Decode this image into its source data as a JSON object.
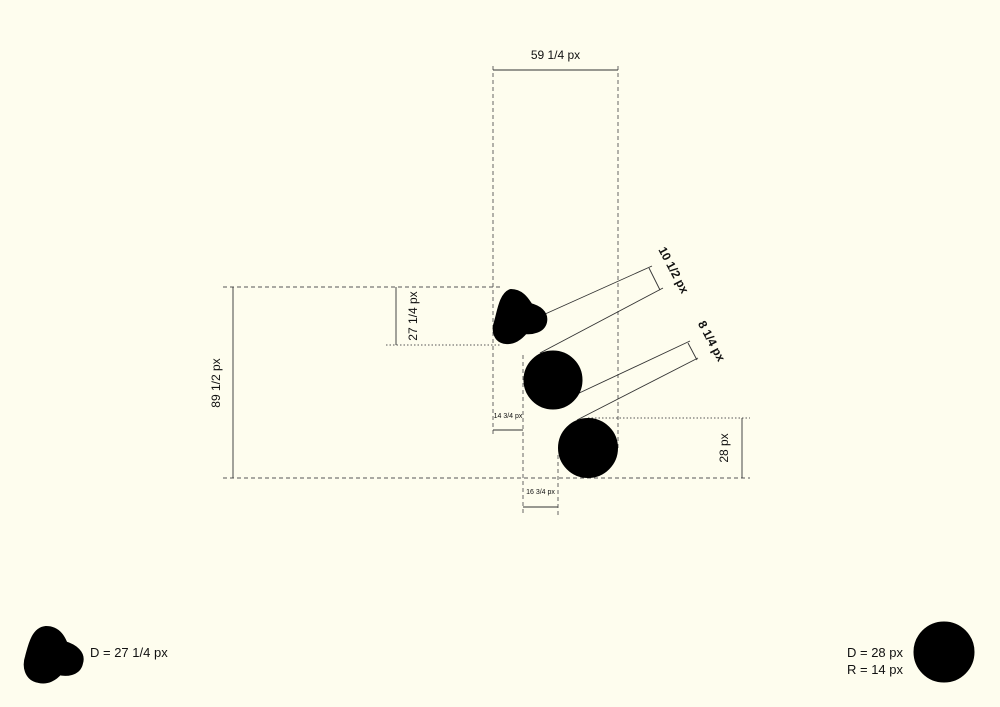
{
  "dimensions": {
    "top_width": "59 1/4 px",
    "total_height": "89 1/2 px",
    "blob_height": "27 1/4 px",
    "gap_one": "10 1/2 px",
    "gap_two": "8 1/4 px",
    "offset_one": "14 3/4 px",
    "offset_two": "16 3/4 px",
    "circle_height": "28 px"
  },
  "legend": {
    "blob_label": "D = 27 1/4 px",
    "circle_diameter": "D = 28 px",
    "circle_radius": "R = 14 px"
  },
  "colors": {
    "background": "#fefdee",
    "ink": "#000000"
  }
}
